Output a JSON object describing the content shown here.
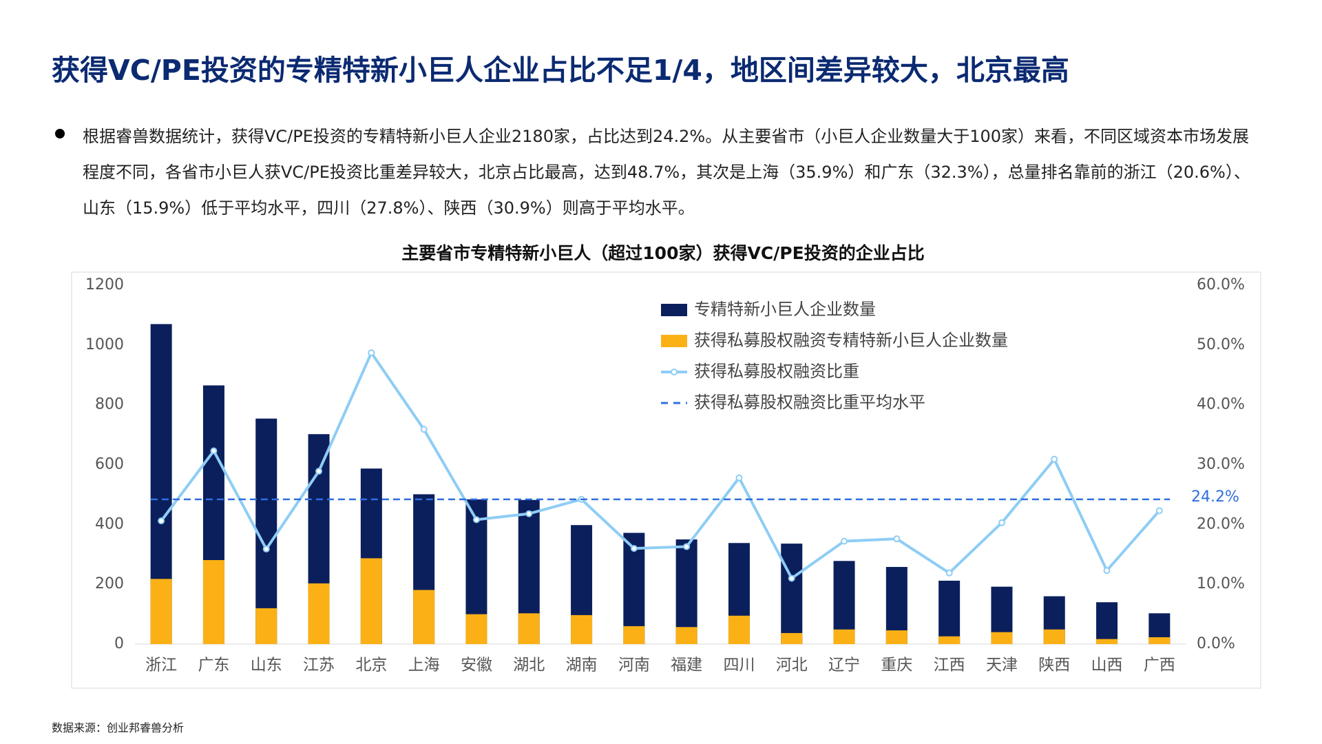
{
  "header": {
    "title": "获得VC/PE投资的专精特新小巨人企业占比不足1/4，地区间差异较大，北京最高"
  },
  "bullet": "根据睿兽数据统计，获得VC/PE投资的专精特新小巨人企业2180家，占比达到24.2%。从主要省市（小巨人企业数量大于100家）来看，不同区域资本市场发展程度不同，各省市小巨人获VC/PE投资比重差异较大，北京占比最高，达到48.7%，其次是上海（35.9%）和广东（32.3%），总量排名靠前的浙江（20.6%）、山东（15.9%）低于平均水平，四川（27.8%）、陕西（30.9%）则高于平均水平。",
  "chart_data": {
    "type": "bar_line",
    "title": "主要省市专精特新小巨人（超过100家）获得VC/PE投资的企业占比",
    "categories": [
      "浙江",
      "广东",
      "山东",
      "江苏",
      "北京",
      "上海",
      "安徽",
      "湖北",
      "湖南",
      "河南",
      "福建",
      "四川",
      "河北",
      "辽宁",
      "重庆",
      "江西",
      "天津",
      "陕西",
      "山西",
      "广西"
    ],
    "series": [
      {
        "name": "专精特新小巨人企业数量",
        "type": "bar",
        "color": "#0b1f5c",
        "values": [
          1070,
          865,
          754,
          702,
          587,
          501,
          484,
          482,
          398,
          372,
          350,
          338,
          336,
          278,
          258,
          212,
          192,
          160,
          140,
          103
        ]
      },
      {
        "name": "获得私募股权融资专精特新小巨人企业数量",
        "type": "bar",
        "color": "#fbb116",
        "values": [
          218,
          281,
          120,
          203,
          287,
          181,
          100,
          103,
          97,
          60,
          57,
          95,
          37,
          49,
          46,
          26,
          40,
          49,
          17,
          23
        ]
      },
      {
        "name": "获得私募股权融资比重",
        "type": "line",
        "axis": "y2",
        "color": "#8ecdf5",
        "values": [
          20.6,
          32.3,
          15.9,
          28.9,
          48.7,
          35.9,
          20.8,
          21.8,
          24.2,
          16.0,
          16.3,
          27.8,
          11.0,
          17.2,
          17.6,
          11.9,
          20.3,
          30.9,
          12.3,
          22.3
        ]
      },
      {
        "name": "获得私募股权融资比重平均水平",
        "type": "hline",
        "axis": "y2",
        "color": "#2e6fe0",
        "value": 24.2,
        "value_label": "24.2%"
      }
    ],
    "ylim": [
      0,
      1200
    ],
    "yticks": [
      0,
      200,
      400,
      600,
      800,
      1000,
      1200
    ],
    "y2lim": [
      0,
      60
    ],
    "y2ticks": [
      {
        "value": 0,
        "label": "0.0%"
      },
      {
        "value": 10,
        "label": "10.0%"
      },
      {
        "value": 20,
        "label": "20.0%"
      },
      {
        "value": 30,
        "label": "30.0%"
      },
      {
        "value": 40,
        "label": "40.0%"
      },
      {
        "value": 50,
        "label": "50.0%"
      },
      {
        "value": 60,
        "label": "60.0%"
      }
    ],
    "legend": "top-right"
  },
  "source": "数据来源：创业邦睿兽分析"
}
